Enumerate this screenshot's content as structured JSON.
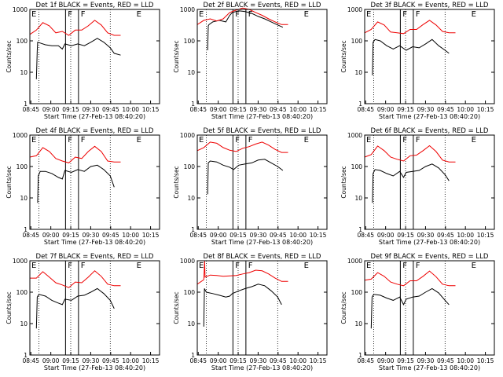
{
  "figure": {
    "start_time_label": "Start Time (27-Feb-13 08:40:20)",
    "ylabel": "Counts/sec",
    "event_marker_labels": [
      "E",
      "F",
      "F",
      "E"
    ],
    "series_colors": {
      "events": "#000000",
      "lld": "#ee0000"
    }
  },
  "chart_data": [
    {
      "type": "line",
      "title": "Det 1f BLACK = Events, RED = LLD",
      "xlabel": "Start Time (27-Feb-13 08:40:20)",
      "ylabel": "Counts/sec",
      "x_ticks": [
        "08:45",
        "09:00",
        "09:15",
        "09:30",
        "09:45",
        "10:00",
        "10:15"
      ],
      "y_ticks": [
        "1",
        "10",
        "100",
        "1000"
      ],
      "ylim": [
        1,
        1000
      ],
      "yscale": "log",
      "series": [
        {
          "color": "#000000",
          "x": [
            0.05,
            0.057,
            0.06,
            0.08,
            0.12,
            0.17,
            0.22,
            0.25,
            0.27,
            0.32,
            0.37,
            0.42,
            0.47,
            0.52,
            0.57,
            0.62,
            0.65,
            0.7
          ],
          "y": [
            6,
            50,
            90,
            85,
            75,
            70,
            70,
            55,
            80,
            70,
            80,
            70,
            90,
            120,
            90,
            60,
            40,
            35
          ]
        },
        {
          "color": "#ee0000",
          "x": [
            0.0,
            0.05,
            0.1,
            0.15,
            0.2,
            0.25,
            0.3,
            0.35,
            0.4,
            0.45,
            0.5,
            0.55,
            0.6,
            0.65,
            0.7
          ],
          "y": [
            160,
            220,
            380,
            300,
            180,
            200,
            150,
            220,
            220,
            300,
            450,
            320,
            180,
            150,
            150
          ]
        }
      ]
    },
    {
      "type": "line",
      "title": "Det 2f BLACK = Events, RED = LLD",
      "xlabel": "Start Time (27-Feb-13 08:40:20)",
      "ylabel": "Counts/sec",
      "x_ticks": [
        "08:45",
        "09:00",
        "09:15",
        "09:30",
        "09:45",
        "10:00",
        "10:15"
      ],
      "y_ticks": [
        "1",
        "10",
        "100",
        "1000"
      ],
      "ylim": [
        1,
        1000
      ],
      "yscale": "log",
      "series": [
        {
          "color": "#000000",
          "x": [
            0.08,
            0.085,
            0.09,
            0.12,
            0.17,
            0.22,
            0.25,
            0.27,
            0.32,
            0.37,
            0.42,
            0.47,
            0.52,
            0.57,
            0.62,
            0.66
          ],
          "y": [
            50,
            300,
            330,
            400,
            450,
            400,
            650,
            800,
            900,
            850,
            750,
            600,
            500,
            400,
            320,
            270
          ]
        },
        {
          "color": "#ee0000",
          "x": [
            0.0,
            0.05,
            0.1,
            0.15,
            0.2,
            0.25,
            0.3,
            0.35,
            0.4,
            0.45,
            0.5,
            0.55,
            0.6,
            0.65,
            0.7
          ],
          "y": [
            330,
            450,
            500,
            430,
            500,
            800,
            950,
            1100,
            1000,
            800,
            650,
            500,
            400,
            330,
            330
          ]
        }
      ]
    },
    {
      "type": "line",
      "title": "Det 3f BLACK = Events, RED = LLD",
      "xlabel": "Start Time (27-Feb-13 08:40:20)",
      "ylabel": "Counts/sec",
      "x_ticks": [
        "08:45",
        "09:00",
        "09:15",
        "09:30",
        "09:45",
        "10:00",
        "10:15"
      ],
      "y_ticks": [
        "1",
        "10",
        "100",
        "1000"
      ],
      "ylim": [
        1,
        1000
      ],
      "yscale": "log",
      "series": [
        {
          "color": "#000000",
          "x": [
            0.06,
            0.065,
            0.08,
            0.12,
            0.17,
            0.22,
            0.27,
            0.32,
            0.37,
            0.42,
            0.47,
            0.52,
            0.57,
            0.62,
            0.65
          ],
          "y": [
            8,
            90,
            110,
            100,
            70,
            55,
            70,
            50,
            65,
            60,
            80,
            110,
            70,
            50,
            40
          ]
        },
        {
          "color": "#ee0000",
          "x": [
            0.0,
            0.05,
            0.1,
            0.15,
            0.2,
            0.25,
            0.3,
            0.35,
            0.4,
            0.45,
            0.5,
            0.55,
            0.6,
            0.65,
            0.7
          ],
          "y": [
            180,
            230,
            400,
            320,
            190,
            180,
            170,
            230,
            230,
            330,
            450,
            320,
            200,
            180,
            180
          ]
        }
      ]
    },
    {
      "type": "line",
      "title": "Det 4f BLACK = Events, RED = LLD",
      "xlabel": "Start Time (27-Feb-13 08:40:20)",
      "ylabel": "Counts/sec",
      "x_ticks": [
        "08:45",
        "09:00",
        "09:15",
        "09:30",
        "09:45",
        "10:00",
        "10:15"
      ],
      "y_ticks": [
        "1",
        "10",
        "100",
        "1000"
      ],
      "ylim": [
        1,
        1000
      ],
      "yscale": "log",
      "series": [
        {
          "color": "#000000",
          "x": [
            0.06,
            0.065,
            0.08,
            0.12,
            0.17,
            0.22,
            0.25,
            0.27,
            0.32,
            0.37,
            0.42,
            0.47,
            0.52,
            0.57,
            0.62,
            0.65
          ],
          "y": [
            7,
            50,
            70,
            70,
            60,
            45,
            40,
            75,
            65,
            80,
            70,
            100,
            110,
            80,
            50,
            22
          ]
        },
        {
          "color": "#ee0000",
          "x": [
            0.0,
            0.05,
            0.1,
            0.15,
            0.2,
            0.25,
            0.3,
            0.35,
            0.4,
            0.45,
            0.5,
            0.55,
            0.6,
            0.65,
            0.7
          ],
          "y": [
            200,
            220,
            400,
            300,
            180,
            150,
            130,
            200,
            180,
            300,
            440,
            300,
            150,
            140,
            140
          ]
        }
      ]
    },
    {
      "type": "line",
      "title": "Det 5f BLACK = Events, RED = LLD",
      "xlabel": "Start Time (27-Feb-13 08:40:20)",
      "ylabel": "Counts/sec",
      "x_ticks": [
        "08:45",
        "09:00",
        "09:15",
        "09:30",
        "09:45",
        "10:00",
        "10:15"
      ],
      "y_ticks": [
        "1",
        "10",
        "100",
        "1000"
      ],
      "ylim": [
        1,
        1000
      ],
      "yscale": "log",
      "series": [
        {
          "color": "#000000",
          "x": [
            0.08,
            0.085,
            0.1,
            0.15,
            0.2,
            0.25,
            0.28,
            0.32,
            0.37,
            0.42,
            0.47,
            0.52,
            0.57,
            0.62,
            0.66
          ],
          "y": [
            13,
            130,
            150,
            140,
            110,
            95,
            80,
            110,
            120,
            130,
            160,
            170,
            130,
            100,
            75
          ]
        },
        {
          "color": "#ee0000",
          "x": [
            0.0,
            0.05,
            0.1,
            0.15,
            0.2,
            0.25,
            0.3,
            0.35,
            0.4,
            0.45,
            0.5,
            0.55,
            0.6,
            0.65,
            0.7
          ],
          "y": [
            320,
            400,
            600,
            550,
            400,
            330,
            300,
            380,
            430,
            520,
            600,
            480,
            350,
            280,
            280
          ]
        }
      ]
    },
    {
      "type": "line",
      "title": "Det 6f BLACK = Events, RED = LLD",
      "xlabel": "Start Time (27-Feb-13 08:40:20)",
      "ylabel": "Counts/sec",
      "x_ticks": [
        "08:45",
        "09:00",
        "09:15",
        "09:30",
        "09:45",
        "10:00",
        "10:15"
      ],
      "y_ticks": [
        "1",
        "10",
        "100",
        "1000"
      ],
      "ylim": [
        1,
        1000
      ],
      "yscale": "log",
      "series": [
        {
          "color": "#000000",
          "x": [
            0.06,
            0.065,
            0.08,
            0.12,
            0.17,
            0.22,
            0.27,
            0.3,
            0.32,
            0.37,
            0.42,
            0.47,
            0.52,
            0.57,
            0.62,
            0.65
          ],
          "y": [
            7,
            60,
            80,
            75,
            60,
            50,
            70,
            45,
            65,
            70,
            75,
            100,
            120,
            90,
            55,
            35
          ]
        },
        {
          "color": "#ee0000",
          "x": [
            0.0,
            0.05,
            0.1,
            0.15,
            0.2,
            0.25,
            0.3,
            0.35,
            0.4,
            0.45,
            0.5,
            0.55,
            0.6,
            0.65,
            0.7
          ],
          "y": [
            200,
            240,
            450,
            320,
            200,
            170,
            150,
            220,
            230,
            320,
            460,
            300,
            160,
            140,
            140
          ]
        }
      ]
    },
    {
      "type": "line",
      "title": "Det 7f BLACK = Events, RED = LLD",
      "xlabel": "Start Time (27-Feb-13 08:40:20)",
      "ylabel": "Counts/sec",
      "x_ticks": [
        "08:45",
        "09:00",
        "09:15",
        "09:30",
        "09:45",
        "10:00",
        "10:15"
      ],
      "y_ticks": [
        "1",
        "10",
        "100",
        "1000"
      ],
      "ylim": [
        1,
        1000
      ],
      "yscale": "log",
      "series": [
        {
          "color": "#000000",
          "x": [
            0.05,
            0.057,
            0.07,
            0.12,
            0.17,
            0.22,
            0.25,
            0.27,
            0.32,
            0.37,
            0.42,
            0.47,
            0.52,
            0.57,
            0.62,
            0.65
          ],
          "y": [
            7,
            70,
            85,
            75,
            55,
            45,
            40,
            60,
            55,
            75,
            80,
            100,
            130,
            90,
            55,
            30
          ]
        },
        {
          "color": "#ee0000",
          "x": [
            0.0,
            0.05,
            0.1,
            0.15,
            0.2,
            0.25,
            0.3,
            0.35,
            0.4,
            0.45,
            0.5,
            0.55,
            0.6,
            0.65,
            0.7
          ],
          "y": [
            280,
            280,
            450,
            300,
            200,
            170,
            140,
            210,
            200,
            300,
            480,
            320,
            180,
            160,
            160
          ]
        }
      ]
    },
    {
      "type": "line",
      "title": "Det 8f BLACK = Events, RED = LLD",
      "xlabel": "Start Time (27-Feb-13 08:40:20)",
      "ylabel": "Counts/sec",
      "x_ticks": [
        "08:45",
        "09:00",
        "09:15",
        "09:30",
        "09:45",
        "10:00",
        "10:15"
      ],
      "y_ticks": [
        "1",
        "10",
        "100",
        "1000"
      ],
      "ylim": [
        1,
        1000
      ],
      "yscale": "log",
      "series": [
        {
          "color": "#000000",
          "x": [
            0.05,
            0.055,
            0.07,
            0.12,
            0.17,
            0.22,
            0.25,
            0.27,
            0.32,
            0.37,
            0.42,
            0.47,
            0.52,
            0.57,
            0.62,
            0.65
          ],
          "y": [
            8,
            130,
            100,
            90,
            80,
            70,
            75,
            90,
            110,
            130,
            150,
            180,
            160,
            110,
            70,
            40
          ]
        },
        {
          "color": "#ee0000",
          "x": [
            0.0,
            0.05,
            0.057,
            0.06,
            0.1,
            0.15,
            0.2,
            0.25,
            0.3,
            0.35,
            0.4,
            0.45,
            0.5,
            0.55,
            0.6,
            0.65,
            0.7
          ],
          "y": [
            180,
            250,
            1000,
            300,
            350,
            340,
            320,
            330,
            340,
            380,
            420,
            500,
            480,
            380,
            280,
            220,
            220
          ]
        }
      ]
    },
    {
      "type": "line",
      "title": "Det 9f BLACK = Events, RED = LLD",
      "xlabel": "Start Time (27-Feb-13 08:40:20)",
      "ylabel": "Counts/sec",
      "x_ticks": [
        "08:45",
        "09:00",
        "09:15",
        "09:30",
        "09:45",
        "10:00",
        "10:15"
      ],
      "y_ticks": [
        "1",
        "10",
        "100",
        "1000"
      ],
      "ylim": [
        1,
        1000
      ],
      "yscale": "log",
      "series": [
        {
          "color": "#000000",
          "x": [
            0.05,
            0.057,
            0.07,
            0.12,
            0.17,
            0.22,
            0.27,
            0.3,
            0.32,
            0.37,
            0.42,
            0.47,
            0.52,
            0.57,
            0.62,
            0.65
          ],
          "y": [
            7,
            70,
            85,
            80,
            65,
            55,
            70,
            40,
            60,
            70,
            75,
            100,
            130,
            95,
            55,
            40
          ]
        },
        {
          "color": "#ee0000",
          "x": [
            0.0,
            0.05,
            0.1,
            0.15,
            0.2,
            0.25,
            0.3,
            0.35,
            0.4,
            0.45,
            0.5,
            0.55,
            0.6,
            0.65,
            0.7
          ],
          "y": [
            240,
            260,
            420,
            320,
            210,
            180,
            160,
            230,
            230,
            320,
            470,
            310,
            180,
            160,
            160
          ]
        }
      ]
    }
  ]
}
